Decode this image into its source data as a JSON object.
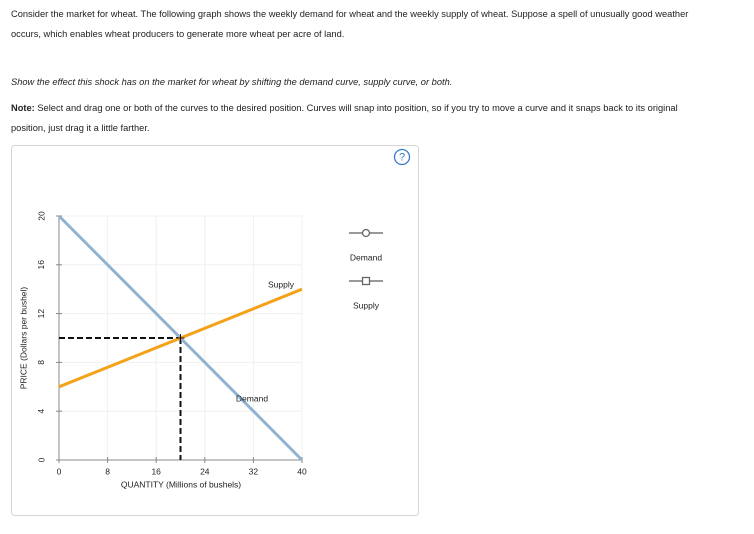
{
  "question": {
    "intro": "Consider the market for wheat. The following graph shows the weekly demand for wheat and the weekly supply of wheat. Suppose a spell of unusually good weather occurs, which enables wheat producers to generate more wheat per acre of land.",
    "task": "Show the effect this shock has on the market for wheat by shifting the demand curve, supply curve, or both.",
    "note_label": "Note:",
    "note_text": "Select and drag one or both of the curves to the desired position. Curves will snap into position, so if you try to move a curve and it snaps back to its original position, just drag it a little farther.",
    "help_icon": "?"
  },
  "chart_data": {
    "type": "line",
    "x_label": "QUANTITY (Millions of bushels)",
    "y_label": "PRICE (Dollars per bushel)",
    "xlim": [
      0,
      40
    ],
    "xticks": [
      0,
      8,
      16,
      24,
      32,
      40
    ],
    "ylim": [
      0,
      20
    ],
    "yticks": [
      0,
      4,
      8,
      12,
      16,
      20
    ],
    "grid": true,
    "series": [
      {
        "name": "Demand",
        "color": "#8fb3d1",
        "marker": "circle",
        "x": [
          0,
          40
        ],
        "values": [
          20,
          0
        ]
      },
      {
        "name": "Supply",
        "color": "#f5a21b",
        "marker": "square",
        "x": [
          0,
          40
        ],
        "values": [
          6,
          14
        ]
      }
    ],
    "equilibrium": {
      "x": 20,
      "y": 10
    }
  }
}
